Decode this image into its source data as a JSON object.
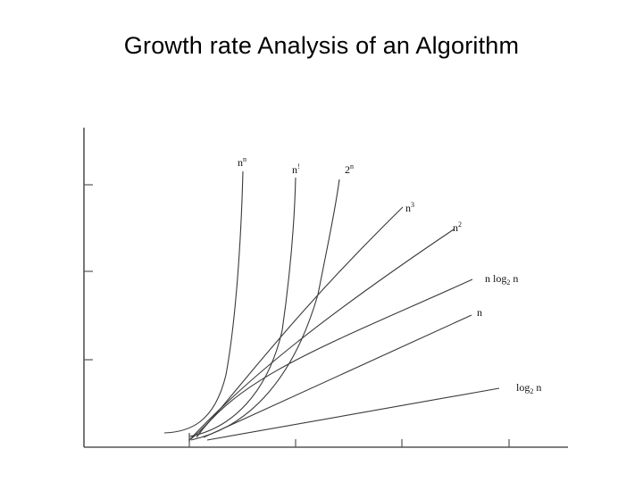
{
  "title": "Growth rate Analysis of an Algorithm",
  "curves": [
    {
      "id": "n-to-the-n",
      "base": "n",
      "exp": "n",
      "sub": "",
      "tail": ""
    },
    {
      "id": "n-factorial",
      "base": "n",
      "exp": "!",
      "sub": "",
      "tail": ""
    },
    {
      "id": "two-to-the-n",
      "base": "2",
      "exp": "n",
      "sub": "",
      "tail": ""
    },
    {
      "id": "n-cubed",
      "base": "n",
      "exp": "3",
      "sub": "",
      "tail": ""
    },
    {
      "id": "n-squared",
      "base": "n",
      "exp": "2",
      "sub": "",
      "tail": ""
    },
    {
      "id": "n-log-n",
      "base": "n log",
      "exp": "",
      "sub": "2",
      "tail": " n"
    },
    {
      "id": "linear-n",
      "base": "n",
      "exp": "",
      "sub": "",
      "tail": ""
    },
    {
      "id": "log-n",
      "base": "log",
      "exp": "",
      "sub": "2",
      "tail": " n"
    }
  ]
}
